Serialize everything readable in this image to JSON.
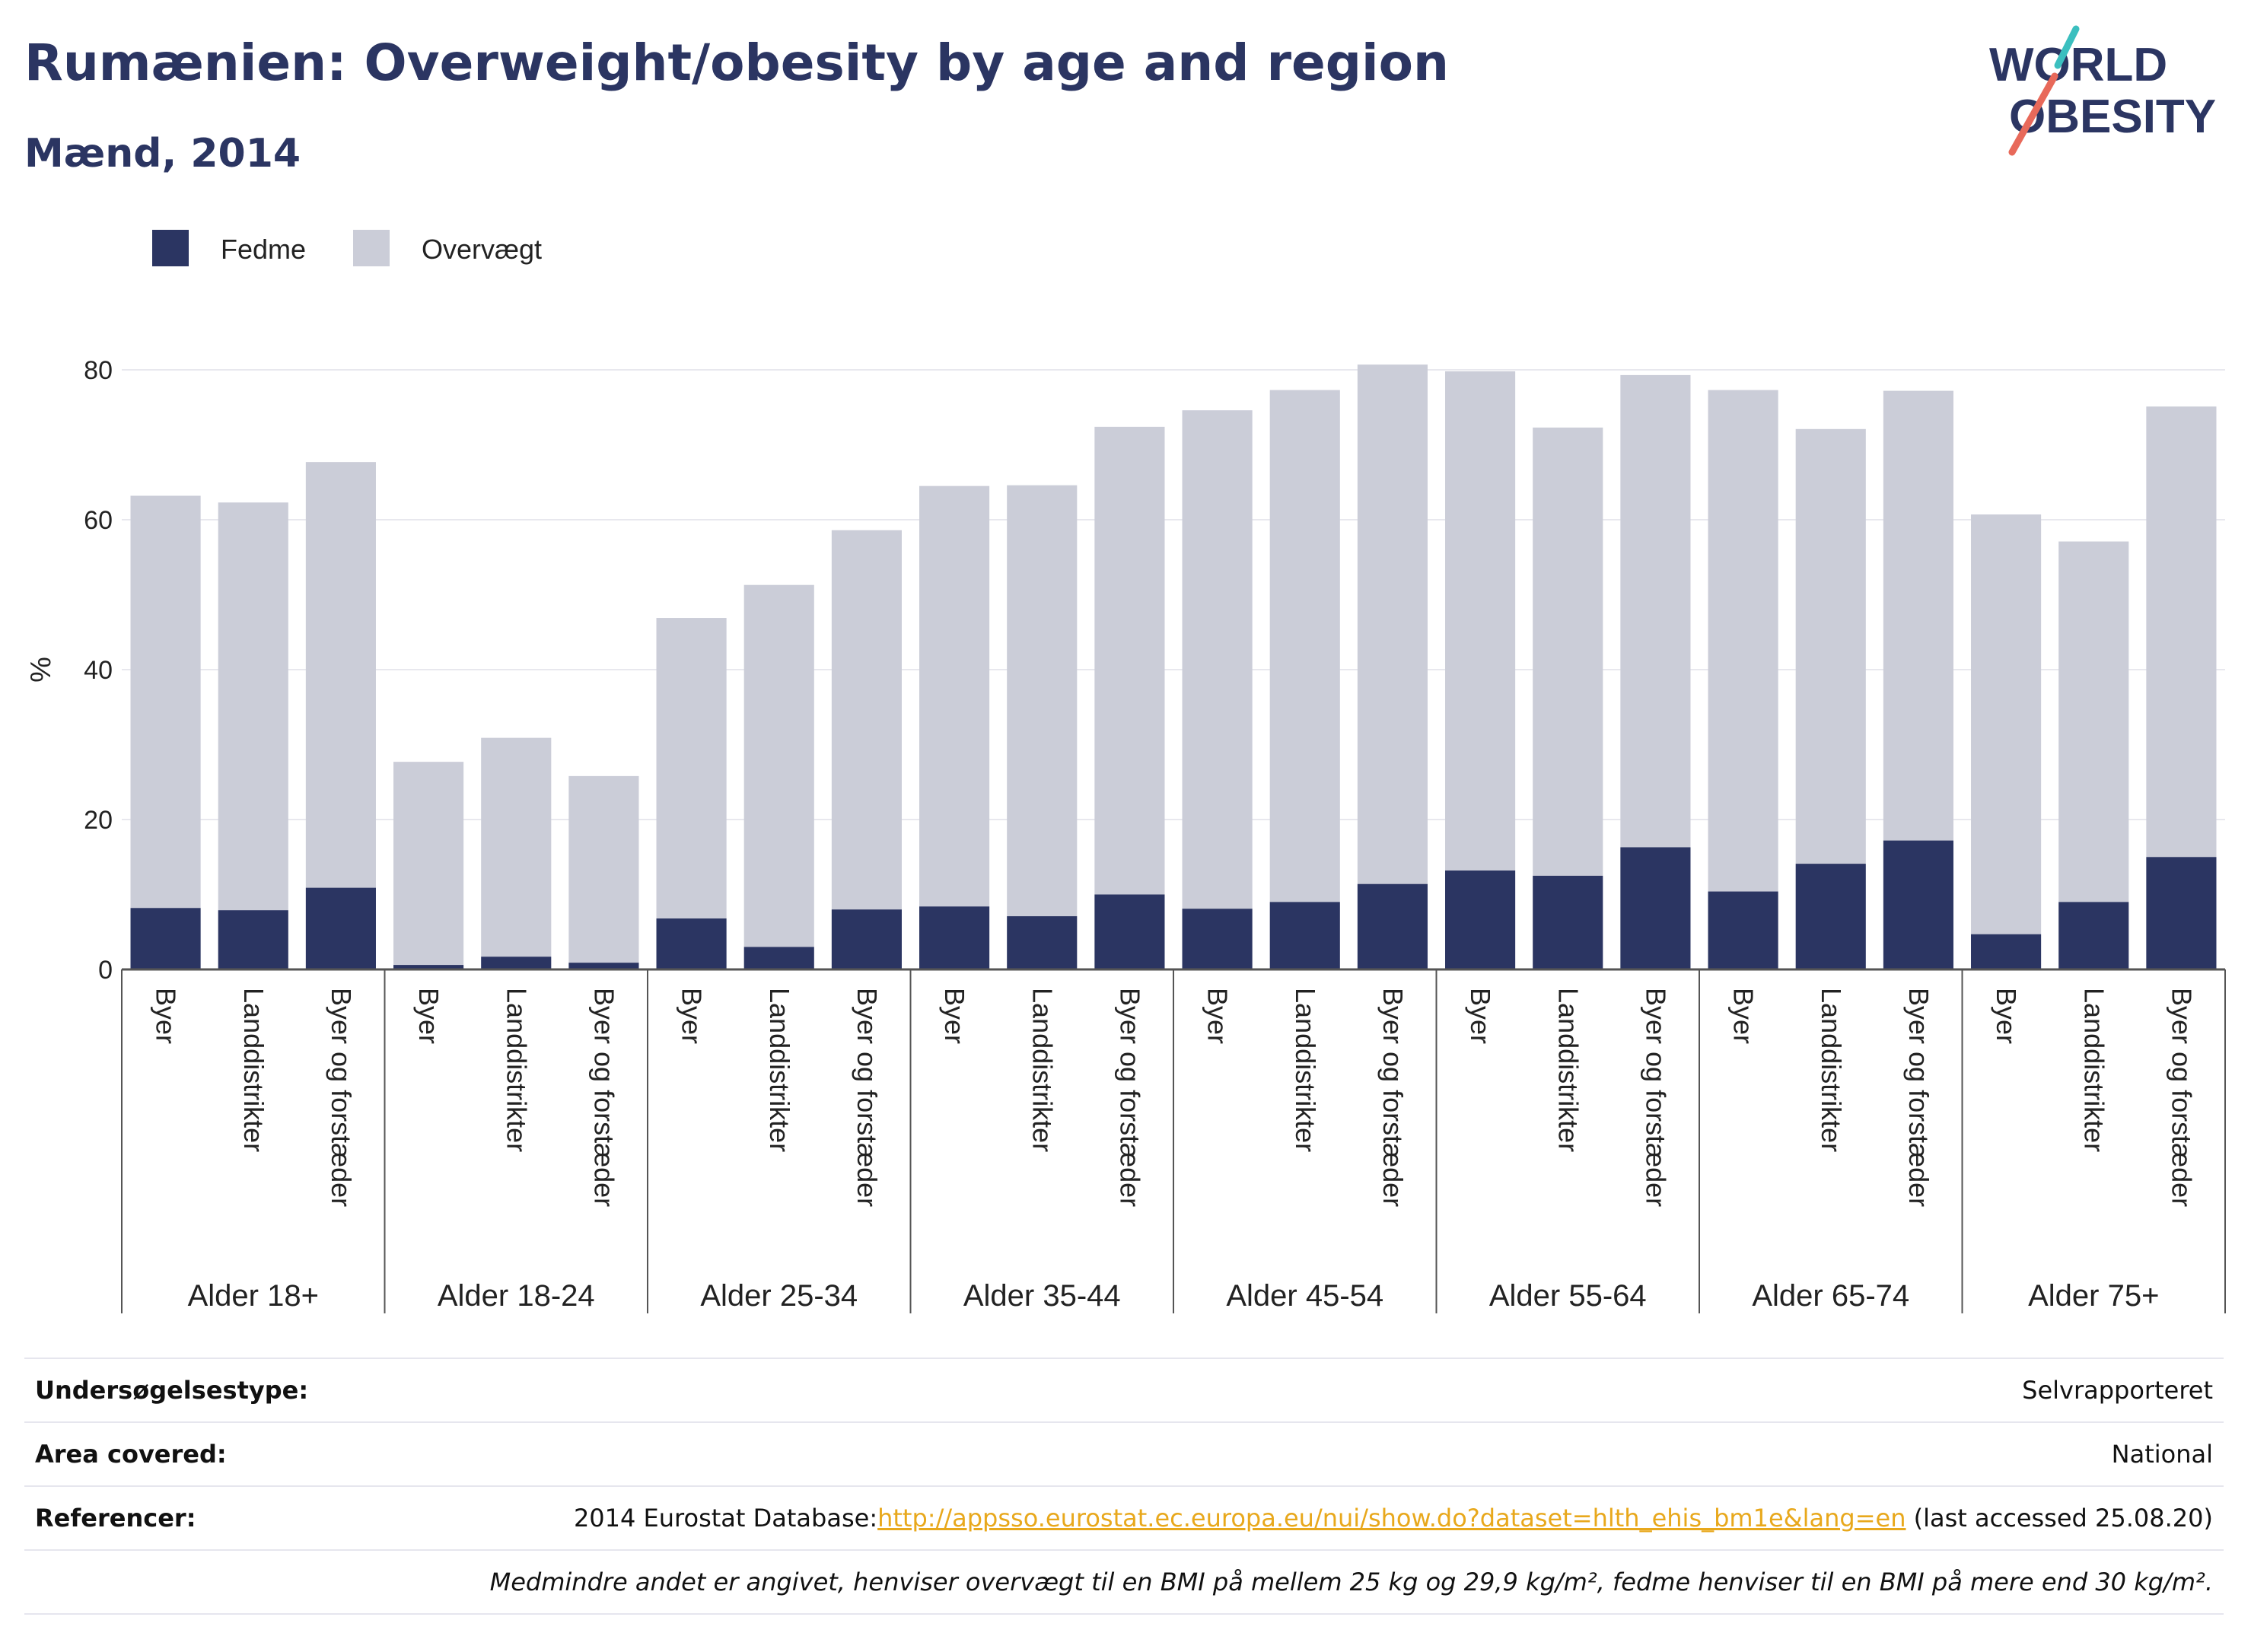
{
  "header": {
    "title": "Rumænien: Overweight/obesity by age and region",
    "subtitle": "Mænd, 2014",
    "logo_line1": "WORLD",
    "logo_line2": "OBESITY"
  },
  "colors": {
    "obesity": "#2b3562",
    "overweight": "#cbcdd8",
    "title": "#2b3562",
    "link": "#e8a81c",
    "logo_teal": "#3bbfbf",
    "logo_coral": "#e8695a"
  },
  "chart_data": {
    "type": "bar",
    "stacked": true,
    "ylabel": "%",
    "ylim": [
      0,
      80
    ],
    "yticks": [
      0,
      20,
      40,
      60,
      80
    ],
    "grid": true,
    "legend_position": "top-left",
    "groups": [
      "Alder 18+",
      "Alder 18-24",
      "Alder 25-34",
      "Alder 35-44",
      "Alder 45-54",
      "Alder 55-64",
      "Alder 65-74",
      "Alder 75+"
    ],
    "subcategories": [
      "Byer",
      "Landdistrikter",
      "Byer og forstæder"
    ],
    "series": [
      {
        "name": "Fedme",
        "values": [
          8.2,
          7.9,
          10.9,
          0.6,
          1.7,
          0.9,
          6.8,
          3.0,
          8.0,
          8.4,
          7.1,
          10.0,
          8.1,
          9.0,
          11.4,
          13.2,
          12.5,
          16.3,
          10.4,
          14.1,
          17.2,
          4.7,
          9.0,
          15.0
        ]
      },
      {
        "name": "Overvægt",
        "values": [
          55.0,
          54.4,
          56.8,
          27.1,
          29.2,
          24.9,
          40.1,
          48.3,
          50.6,
          56.1,
          57.5,
          62.4,
          66.5,
          68.3,
          69.3,
          66.6,
          59.8,
          63.0,
          66.9,
          58.0,
          60.0,
          56.0,
          48.1,
          60.1
        ]
      }
    ]
  },
  "info": {
    "survey_type_label": "Undersøgelsestype:",
    "survey_type_value": "Selvrapporteret",
    "area_label": "Area covered:",
    "area_value": "National",
    "references_label": "Referencer:",
    "references_prefix": "2014 Eurostat Database:",
    "references_link": "http://appsso.eurostat.ec.europa.eu/nui/show.do?dataset=hlth_ehis_bm1e&lang=en",
    "references_suffix": " (last accessed 25.08.20)",
    "note": "Medmindre andet er angivet, henviser overvægt til en BMI på mellem 25 kg og 29,9 kg/m², fedme henviser til en BMI på mere end 30 kg/m²."
  }
}
